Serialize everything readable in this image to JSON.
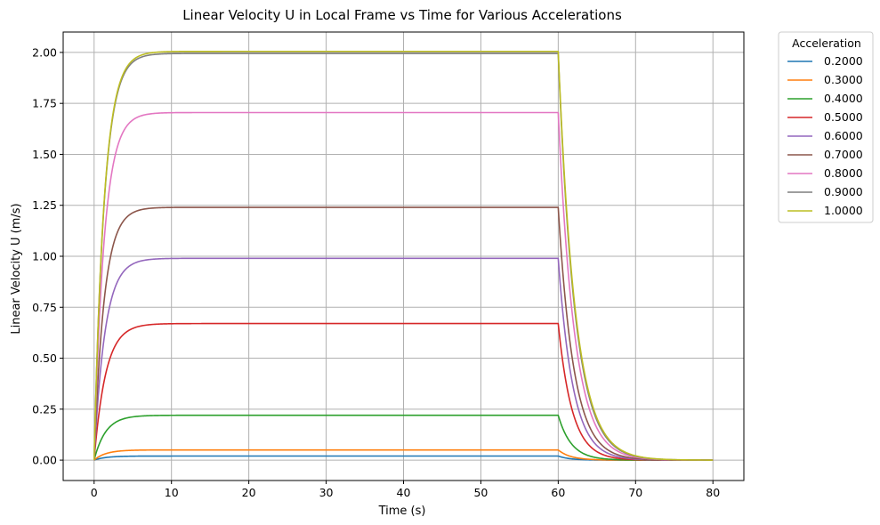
{
  "chart_data": {
    "type": "line",
    "title": "Linear Velocity U in Local Frame vs Time for Various Accelerations",
    "xlabel": "Time (s)",
    "ylabel": "Linear Velocity U (m/s)",
    "xlim": [
      -4,
      84
    ],
    "ylim": [
      -0.1,
      2.1
    ],
    "xticks": [
      0,
      10,
      20,
      30,
      40,
      50,
      60,
      70,
      80
    ],
    "yticks": [
      0.0,
      0.25,
      0.5,
      0.75,
      1.0,
      1.25,
      1.5,
      1.75,
      2.0
    ],
    "xtick_labels": [
      "0",
      "10",
      "20",
      "30",
      "40",
      "50",
      "60",
      "70",
      "80"
    ],
    "ytick_labels": [
      "0.00",
      "0.25",
      "0.50",
      "0.75",
      "1.00",
      "1.25",
      "1.50",
      "1.75",
      "2.00"
    ],
    "grid": true,
    "legend": {
      "title": "Acceleration",
      "placement": "outside-top-right"
    },
    "rise_end_time": 60,
    "decay_end_time": 80,
    "series": [
      {
        "name": "0.2000",
        "color": "#1f77b4",
        "steady_value": 0.02,
        "rise_tau": 1.5,
        "decay_tau": 1.5
      },
      {
        "name": "0.3000",
        "color": "#ff7f0e",
        "steady_value": 0.05,
        "rise_tau": 1.5,
        "decay_tau": 1.6
      },
      {
        "name": "0.4000",
        "color": "#2ca02c",
        "steady_value": 0.22,
        "rise_tau": 1.5,
        "decay_tau": 1.7
      },
      {
        "name": "0.5000",
        "color": "#d62728",
        "steady_value": 0.67,
        "rise_tau": 1.5,
        "decay_tau": 1.8
      },
      {
        "name": "0.6000",
        "color": "#9467bd",
        "steady_value": 0.99,
        "rise_tau": 1.4,
        "decay_tau": 1.9
      },
      {
        "name": "0.7000",
        "color": "#8c564b",
        "steady_value": 1.24,
        "rise_tau": 1.3,
        "decay_tau": 2.0
      },
      {
        "name": "0.8000",
        "color": "#e377c2",
        "steady_value": 1.705,
        "rise_tau": 1.3,
        "decay_tau": 2.1
      },
      {
        "name": "0.9000",
        "color": "#7f7f7f",
        "steady_value": 1.995,
        "rise_tau": 1.3,
        "decay_tau": 2.15
      },
      {
        "name": "1.0000",
        "color": "#bcbd22",
        "steady_value": 2.005,
        "rise_tau": 1.3,
        "decay_tau": 2.2
      }
    ]
  }
}
